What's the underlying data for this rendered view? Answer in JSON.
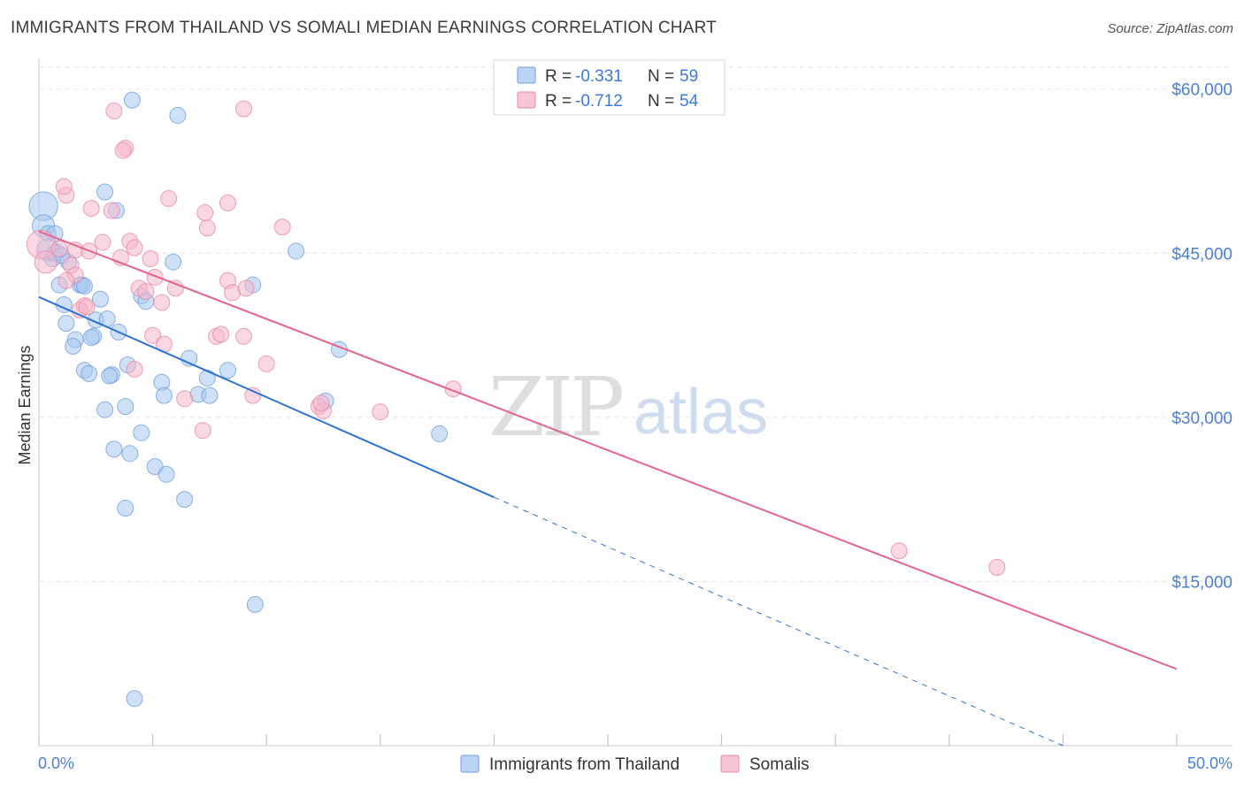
{
  "title": "IMMIGRANTS FROM THAILAND VS SOMALI MEDIAN EARNINGS CORRELATION CHART",
  "source": "Source: ZipAtlas.com",
  "watermark": {
    "zip": "ZIP",
    "atlas": "atlas"
  },
  "colors": {
    "blue_fill": "#a8c8f0",
    "blue_stroke": "#6f9fdc",
    "blue_line": "#2e72d2",
    "pink_fill": "#f5b8cc",
    "pink_stroke": "#e58aa8",
    "pink_line": "#e06690",
    "tick_text": "#4a7fd4",
    "grid": "#e3e3e3"
  },
  "legend": {
    "rows": [
      {
        "r_label": "R = ",
        "r_value": "-0.331",
        "n_label": "N = ",
        "n_value": "59",
        "series": "thailand"
      },
      {
        "r_label": "R = ",
        "r_value": "-0.712",
        "n_label": "N = ",
        "n_value": "54",
        "series": "somalis"
      }
    ]
  },
  "chart_data": {
    "type": "scatter",
    "title": "IMMIGRANTS FROM THAILAND VS SOMALI MEDIAN EARNINGS CORRELATION CHART",
    "xlabel": "",
    "ylabel": "Median Earnings",
    "xlim": [
      0,
      50
    ],
    "ylim": [
      0,
      62000
    ],
    "x_tick_labels": [
      "0.0%",
      "50.0%"
    ],
    "y_ticks": [
      15000,
      30000,
      45000,
      60000
    ],
    "y_tick_labels": [
      "$15,000",
      "$30,000",
      "$45,000",
      "$60,000"
    ],
    "grid": true,
    "legend_position": "top-center",
    "series": [
      {
        "name": "Immigrants from Thailand",
        "color": "#a8c8f0",
        "R": -0.331,
        "N": 59,
        "trend": {
          "x0": 0,
          "y0": 41000,
          "x1": 20,
          "y1": 22700,
          "dashed_to_x": 45,
          "dashed_to_y": 0
        },
        "points": [
          [
            0.2,
            49300,
            1.8
          ],
          [
            0.2,
            47500,
            1.4
          ],
          [
            0.4,
            46800,
            1
          ],
          [
            0.7,
            46800,
            1
          ],
          [
            0.4,
            45300,
            1.4
          ],
          [
            0.8,
            45100,
            1
          ],
          [
            0.6,
            44500,
            1
          ],
          [
            1.3,
            44200,
            1
          ],
          [
            0.9,
            42100,
            1
          ],
          [
            1.8,
            42100,
            1
          ],
          [
            1.9,
            42100,
            1
          ],
          [
            1.1,
            40300,
            1
          ],
          [
            2.7,
            40800,
            1
          ],
          [
            1.2,
            38600,
            1
          ],
          [
            2.5,
            38900,
            1
          ],
          [
            3.0,
            39000,
            1
          ],
          [
            3.5,
            37800,
            1
          ],
          [
            1.6,
            37100,
            1
          ],
          [
            1.5,
            36500,
            1
          ],
          [
            2.4,
            37400,
            1
          ],
          [
            2.3,
            37300,
            1
          ],
          [
            2.0,
            34300,
            1
          ],
          [
            2.2,
            34000,
            1
          ],
          [
            3.2,
            33900,
            1
          ],
          [
            3.1,
            33800,
            1
          ],
          [
            3.9,
            34800,
            1
          ],
          [
            5.4,
            33200,
            1
          ],
          [
            6.6,
            35400,
            1
          ],
          [
            7.4,
            33600,
            1
          ],
          [
            8.3,
            34300,
            1
          ],
          [
            5.5,
            32000,
            1
          ],
          [
            7.0,
            32100,
            1
          ],
          [
            7.5,
            32000,
            1
          ],
          [
            3.8,
            31000,
            1
          ],
          [
            2.9,
            30700,
            1
          ],
          [
            4.5,
            28600,
            1
          ],
          [
            3.3,
            27100,
            1
          ],
          [
            4.0,
            26700,
            1
          ],
          [
            5.1,
            25500,
            1
          ],
          [
            5.6,
            24800,
            1
          ],
          [
            3.8,
            21700,
            1
          ],
          [
            6.4,
            22500,
            1
          ],
          [
            12.6,
            31500,
            1
          ],
          [
            13.2,
            36200,
            1
          ],
          [
            17.6,
            28500,
            1
          ],
          [
            9.4,
            42100,
            1
          ],
          [
            11.3,
            45200,
            1
          ],
          [
            5.9,
            44200,
            1
          ],
          [
            4.5,
            41100,
            1
          ],
          [
            4.7,
            40600,
            1
          ],
          [
            2.9,
            50600,
            1
          ],
          [
            3.4,
            48900,
            1
          ],
          [
            6.1,
            57600,
            1
          ],
          [
            4.1,
            59000,
            1
          ],
          [
            9.5,
            12900,
            1
          ],
          [
            4.2,
            4300,
            1
          ],
          [
            0.7,
            45000,
            1
          ],
          [
            1.0,
            44800,
            1
          ],
          [
            2.0,
            42000,
            1
          ]
        ]
      },
      {
        "name": "Somalis",
        "color": "#f5b8cc",
        "R": -0.712,
        "N": 54,
        "trend": {
          "x0": 0,
          "y0": 47000,
          "x1": 50,
          "y1": 7000
        },
        "points": [
          [
            0.1,
            45800,
            1.8
          ],
          [
            0.3,
            44200,
            1.4
          ],
          [
            0.9,
            45400,
            1
          ],
          [
            1.6,
            45300,
            1
          ],
          [
            1.4,
            43900,
            1
          ],
          [
            1.6,
            43000,
            1
          ],
          [
            1.2,
            50300,
            1
          ],
          [
            1.1,
            51100,
            1
          ],
          [
            2.3,
            49100,
            1
          ],
          [
            3.2,
            48900,
            1
          ],
          [
            3.6,
            44600,
            1
          ],
          [
            2.8,
            46000,
            1
          ],
          [
            2.2,
            45200,
            1
          ],
          [
            4.0,
            46100,
            1
          ],
          [
            4.9,
            44500,
            1
          ],
          [
            5.1,
            42800,
            1
          ],
          [
            4.4,
            41800,
            1
          ],
          [
            4.7,
            41500,
            1
          ],
          [
            5.4,
            40500,
            1
          ],
          [
            6.0,
            41800,
            1
          ],
          [
            2.0,
            40200,
            1
          ],
          [
            1.8,
            39800,
            1
          ],
          [
            5.0,
            37500,
            1
          ],
          [
            5.5,
            36700,
            1
          ],
          [
            4.2,
            34400,
            1
          ],
          [
            7.4,
            47300,
            1
          ],
          [
            8.3,
            42500,
            1
          ],
          [
            8.5,
            41400,
            1
          ],
          [
            9.1,
            41800,
            1
          ],
          [
            7.8,
            37400,
            1
          ],
          [
            8.0,
            37600,
            1
          ],
          [
            9.0,
            37400,
            1
          ],
          [
            10.0,
            34900,
            1
          ],
          [
            9.4,
            32000,
            1
          ],
          [
            6.4,
            31700,
            1
          ],
          [
            7.2,
            28800,
            1
          ],
          [
            12.3,
            31000,
            1
          ],
          [
            12.5,
            30600,
            1
          ],
          [
            15.0,
            30500,
            1
          ],
          [
            18.2,
            32600,
            1
          ],
          [
            3.8,
            54600,
            1
          ],
          [
            3.7,
            54400,
            1
          ],
          [
            3.3,
            58000,
            1
          ],
          [
            9.0,
            58200,
            1
          ],
          [
            5.7,
            50000,
            1
          ],
          [
            7.3,
            48700,
            1
          ],
          [
            8.3,
            49600,
            1
          ],
          [
            10.7,
            47400,
            1
          ],
          [
            12.4,
            31300,
            1
          ],
          [
            37.8,
            17800,
            1
          ],
          [
            42.1,
            16300,
            1
          ],
          [
            2.1,
            40100,
            1
          ],
          [
            1.2,
            42500,
            1
          ],
          [
            4.2,
            45500,
            1
          ]
        ]
      }
    ]
  }
}
